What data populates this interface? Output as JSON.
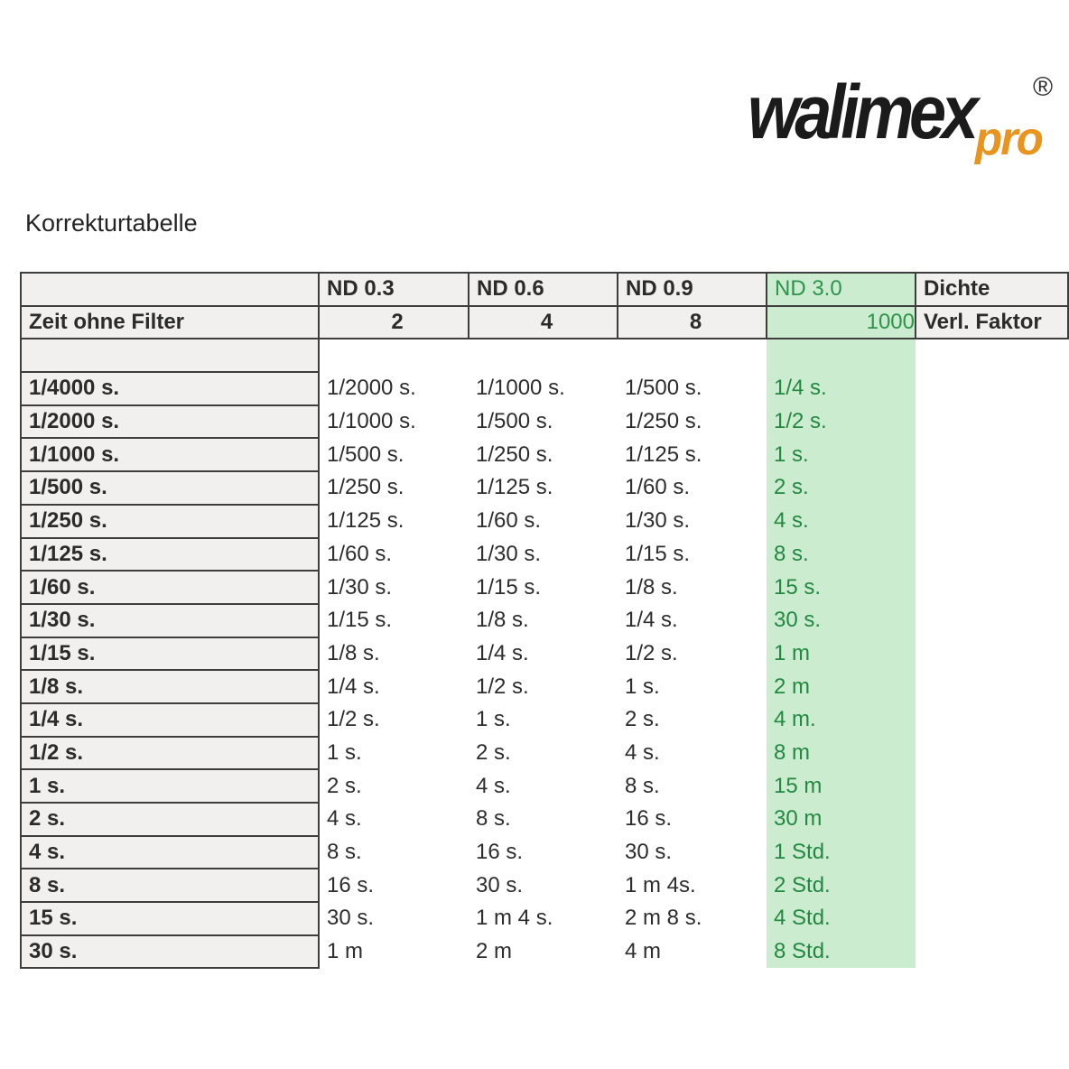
{
  "logo": {
    "brand": "walimex",
    "sub": "pro",
    "registered": "®",
    "brand_color": "#1b1b1b",
    "sub_color": "#e8941e"
  },
  "page": {
    "title": "Korrekturtabelle"
  },
  "colors": {
    "header_gray": "#f1f0ee",
    "border": "#3d3d3d",
    "green_bg": "#cbecce",
    "green_text": "#238842"
  },
  "table": {
    "header_row1": [
      "",
      "ND 0.3",
      "ND 0.6",
      "ND 0.9",
      "ND 3.0",
      "Dichte"
    ],
    "header_row2": [
      "Zeit ohne Filter",
      "2",
      "4",
      "8",
      "1000",
      "Verl. Faktor"
    ],
    "rows": [
      [
        "1/4000 s.",
        "1/2000 s.",
        "1/1000 s.",
        "1/500 s.",
        "1/4 s."
      ],
      [
        "1/2000 s.",
        "1/1000 s.",
        "1/500 s.",
        "1/250 s.",
        "1/2 s."
      ],
      [
        "1/1000 s.",
        "1/500 s.",
        "1/250 s.",
        "1/125 s.",
        "1 s."
      ],
      [
        "1/500 s.",
        "1/250 s.",
        "1/125 s.",
        "1/60 s.",
        "2 s."
      ],
      [
        "1/250 s.",
        "1/125 s.",
        "1/60 s.",
        "1/30 s.",
        "4 s."
      ],
      [
        "1/125 s.",
        "1/60 s.",
        "1/30 s.",
        "1/15 s.",
        "8 s."
      ],
      [
        "1/60 s.",
        "1/30 s.",
        "1/15 s.",
        "1/8 s.",
        "15 s."
      ],
      [
        "1/30 s.",
        "1/15 s.",
        "1/8 s.",
        "1/4 s.",
        "30 s."
      ],
      [
        "1/15 s.",
        "1/8 s.",
        "1/4 s.",
        "1/2 s.",
        "1 m"
      ],
      [
        "1/8 s.",
        "1/4 s.",
        "1/2 s.",
        "1 s.",
        "2 m"
      ],
      [
        "1/4 s.",
        "1/2 s.",
        "1 s.",
        "2 s.",
        "4 m."
      ],
      [
        "1/2 s.",
        "1 s.",
        "2 s.",
        "4 s.",
        "8 m"
      ],
      [
        "1 s.",
        "2 s.",
        "4 s.",
        "8 s.",
        "15 m"
      ],
      [
        "2 s.",
        "4 s.",
        "8 s.",
        "16 s.",
        "30 m"
      ],
      [
        "4 s.",
        "8 s.",
        "16 s.",
        "30 s.",
        "1 Std."
      ],
      [
        "8 s.",
        "16 s.",
        "30 s.",
        "1 m 4s.",
        "2 Std."
      ],
      [
        "15 s.",
        "30 s.",
        "1 m 4 s.",
        "2 m 8 s.",
        "4 Std."
      ],
      [
        "30 s.",
        "1 m",
        "2 m",
        "4 m",
        "8 Std."
      ]
    ]
  }
}
